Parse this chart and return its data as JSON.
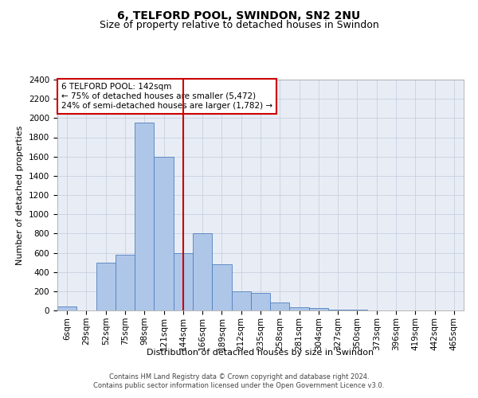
{
  "title1": "6, TELFORD POOL, SWINDON, SN2 2NU",
  "title2": "Size of property relative to detached houses in Swindon",
  "xlabel": "Distribution of detached houses by size in Swindon",
  "ylabel": "Number of detached properties",
  "categories": [
    "6sqm",
    "29sqm",
    "52sqm",
    "75sqm",
    "98sqm",
    "121sqm",
    "144sqm",
    "166sqm",
    "189sqm",
    "212sqm",
    "235sqm",
    "258sqm",
    "281sqm",
    "304sqm",
    "327sqm",
    "350sqm",
    "373sqm",
    "396sqm",
    "419sqm",
    "442sqm",
    "465sqm"
  ],
  "values": [
    40,
    0,
    500,
    580,
    1950,
    1600,
    600,
    800,
    480,
    200,
    180,
    85,
    30,
    22,
    10,
    10,
    2,
    0,
    2,
    0,
    0
  ],
  "bar_color": "#aec6e8",
  "bar_edge_color": "#5080c0",
  "vline_color": "#cc0000",
  "vline_index": 6.5,
  "ylim": [
    0,
    2400
  ],
  "yticks": [
    0,
    200,
    400,
    600,
    800,
    1000,
    1200,
    1400,
    1600,
    1800,
    2000,
    2200,
    2400
  ],
  "annotation_title": "6 TELFORD POOL: 142sqm",
  "annotation_line1": "← 75% of detached houses are smaller (5,472)",
  "annotation_line2": "24% of semi-detached houses are larger (1,782) →",
  "annotation_box_color": "#ffffff",
  "annotation_box_edge_color": "#cc0000",
  "footer1": "Contains HM Land Registry data © Crown copyright and database right 2024.",
  "footer2": "Contains public sector information licensed under the Open Government Licence v3.0.",
  "background_color": "#ffffff",
  "plot_bg_color": "#e8edf5",
  "grid_color": "#c8d0e0",
  "title1_fontsize": 10,
  "title2_fontsize": 9,
  "axis_label_fontsize": 8,
  "tick_fontsize": 7.5,
  "footer_fontsize": 6,
  "annotation_fontsize": 7.5
}
